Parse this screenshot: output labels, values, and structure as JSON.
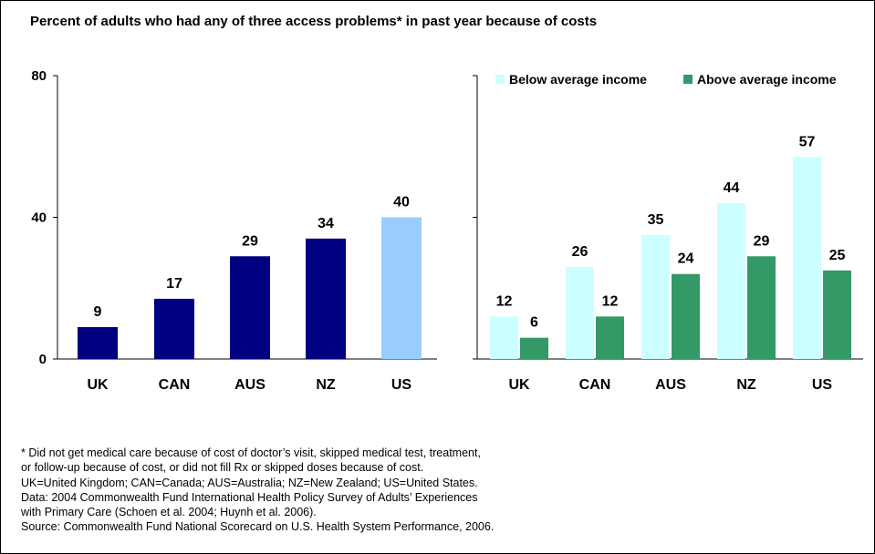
{
  "title": "Percent of adults who had any of three access problems* in past year because of costs",
  "colors": {
    "overall": "#000080",
    "us_highlight": "#99ccff",
    "below": "#ccffff",
    "above": "#339966",
    "axis": "#000000"
  },
  "chart_data": [
    {
      "type": "bar",
      "categories": [
        "UK",
        "CAN",
        "AUS",
        "NZ",
        "US"
      ],
      "values": [
        9,
        17,
        29,
        34,
        40
      ],
      "highlight_category": "US",
      "ylim": [
        0,
        80
      ],
      "yticks": [
        "0",
        "40",
        "80"
      ],
      "xlabel": "",
      "ylabel": ""
    },
    {
      "type": "bar",
      "categories": [
        "UK",
        "CAN",
        "AUS",
        "NZ",
        "US"
      ],
      "series": [
        {
          "name": "Below average income",
          "values": [
            12,
            26,
            35,
            44,
            57
          ]
        },
        {
          "name": "Above average income",
          "values": [
            6,
            12,
            24,
            29,
            25
          ]
        }
      ],
      "ylim": [
        0,
        80
      ],
      "legend": "top"
    }
  ],
  "notes": [
    "* Did not get medical care because of cost of doctor’s visit, skipped medical test, treatment,",
    "or follow-up because of cost, or did not fill Rx or skipped doses because of cost.",
    "UK=United Kingdom; CAN=Canada; AUS=Australia; NZ=New Zealand; US=United States.",
    "Data: 2004 Commonwealth Fund International Health Policy Survey of Adults’ Experiences",
    "with Primary Care (Schoen et al. 2004; Huynh et al. 2006).",
    "Source: Commonwealth Fund National Scorecard on U.S. Health System Performance, 2006."
  ]
}
